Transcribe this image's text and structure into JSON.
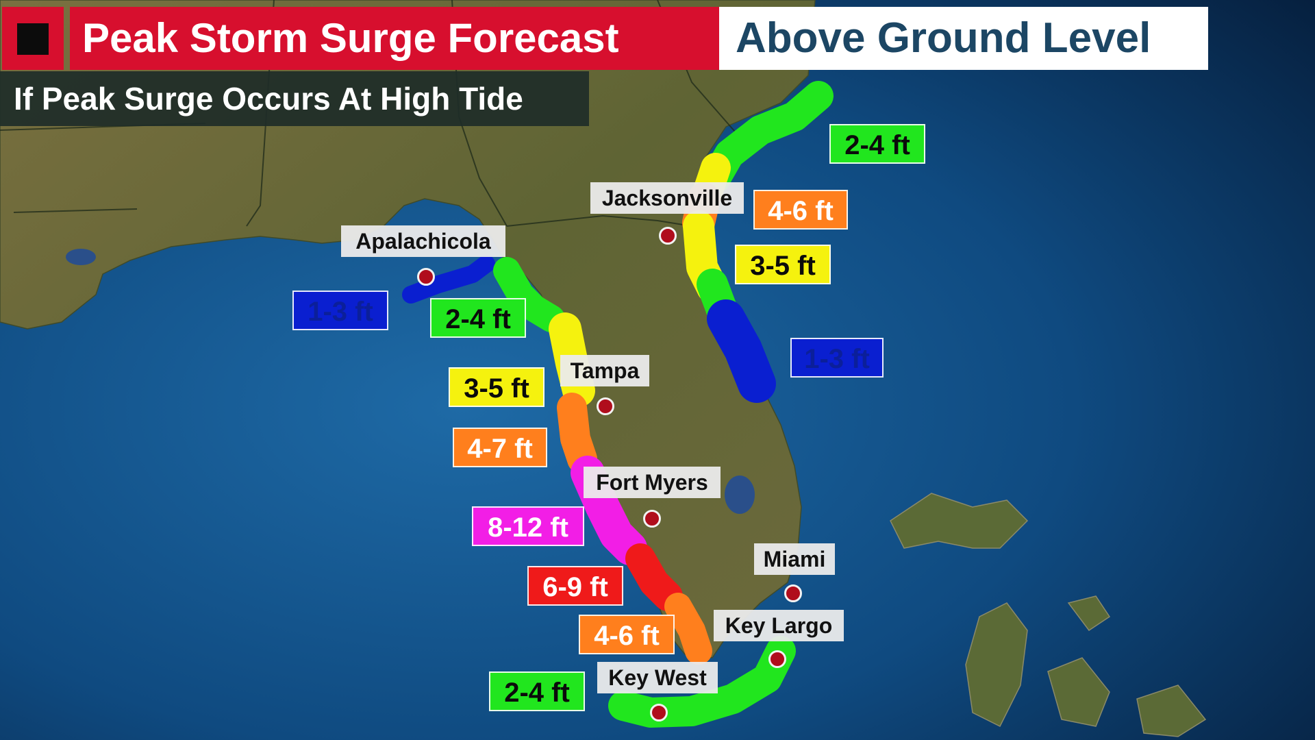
{
  "header": {
    "title": "Peak Storm Surge Forecast",
    "title_right": "Above Ground Level",
    "subtitle": "If Peak Surge Occurs At High Tide"
  },
  "colors": {
    "brand_red": "#d70f2e",
    "surge_1_3": "#0a1fd0",
    "surge_2_4": "#21e61e",
    "surge_3_5": "#f5f20e",
    "surge_4_6": "#ff7f1d",
    "surge_4_7": "#ff7f1d",
    "surge_6_9": "#ef1a1a",
    "surge_8_12": "#f21ee6",
    "ocean": "#0d4a7e",
    "land": "#6b6a3a"
  },
  "cities": [
    {
      "name": "Jacksonville"
    },
    {
      "name": "Apalachicola"
    },
    {
      "name": "Tampa"
    },
    {
      "name": "Fort Myers"
    },
    {
      "name": "Miami"
    },
    {
      "name": "Key Largo"
    },
    {
      "name": "Key West"
    }
  ],
  "surge_labels": [
    {
      "text": "2-4 ft",
      "color": "#21e61e",
      "text_color": "#0b0b0b"
    },
    {
      "text": "4-6 ft",
      "color": "#ff7f1d",
      "text_color": "#ffffff"
    },
    {
      "text": "3-5 ft",
      "color": "#f5f20e",
      "text_color": "#0b0b0b"
    },
    {
      "text": "1-3 ft",
      "color": "#0a1fd0",
      "text_color": "#0b1f9a"
    },
    {
      "text": "1-3 ft",
      "color": "#0a1fd0",
      "text_color": "#0b1f9a"
    },
    {
      "text": "2-4 ft",
      "color": "#21e61e",
      "text_color": "#0b0b0b"
    },
    {
      "text": "3-5 ft",
      "color": "#f5f20e",
      "text_color": "#0b0b0b"
    },
    {
      "text": "4-7 ft",
      "color": "#ff7f1d",
      "text_color": "#ffffff"
    },
    {
      "text": "8-12 ft",
      "color": "#f21ee6",
      "text_color": "#ffffff"
    },
    {
      "text": "6-9 ft",
      "color": "#ef1a1a",
      "text_color": "#ffffff"
    },
    {
      "text": "4-6 ft",
      "color": "#ff7f1d",
      "text_color": "#ffffff"
    },
    {
      "text": "2-4 ft",
      "color": "#21e61e",
      "text_color": "#0b0b0b"
    }
  ]
}
